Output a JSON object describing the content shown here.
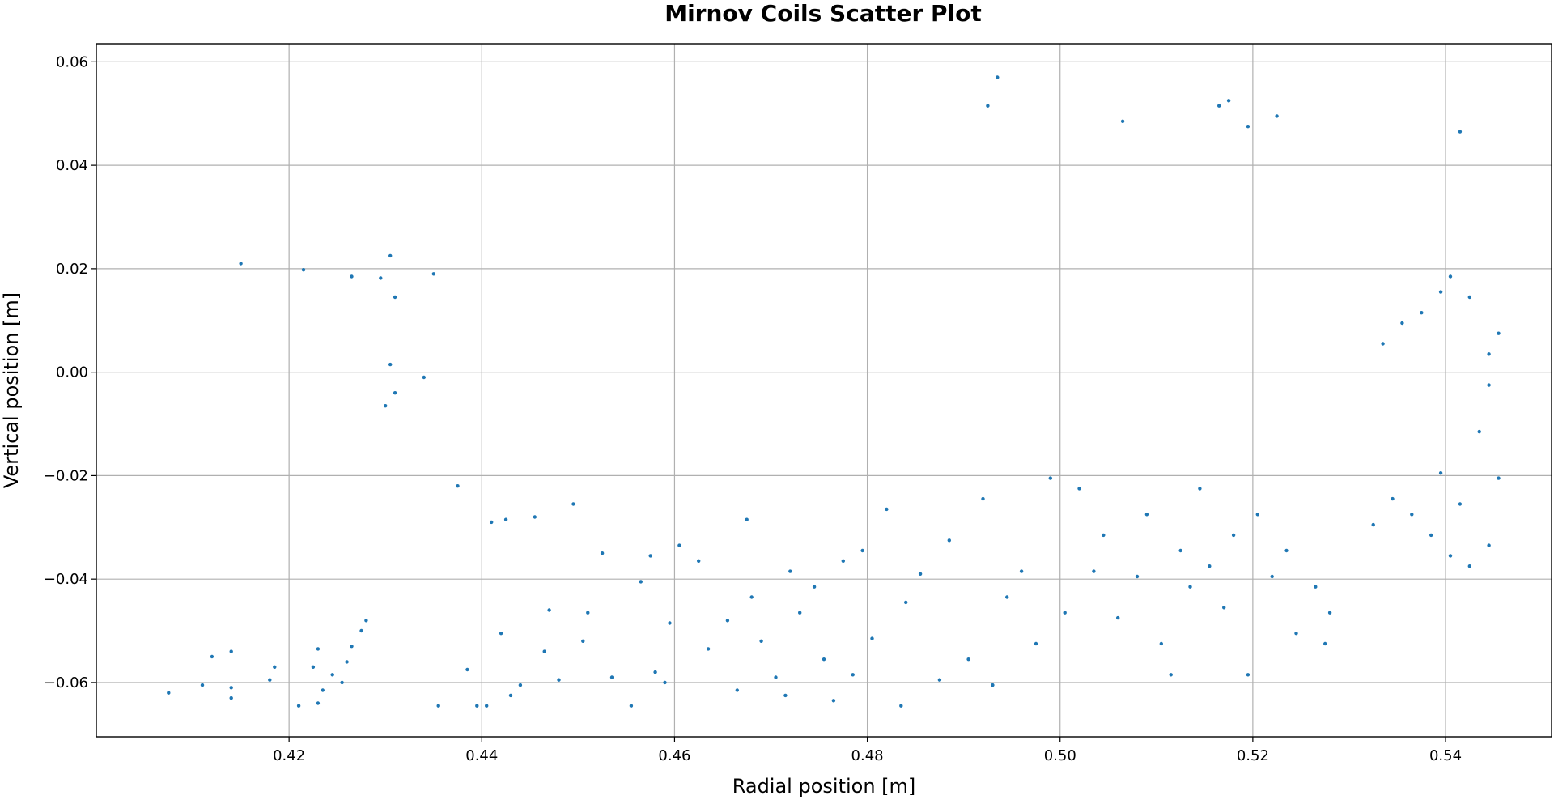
{
  "chart_data": {
    "type": "scatter",
    "title": "Mirnov Coils Scatter Plot",
    "xlabel": "Radial position [m]",
    "ylabel": "Vertical position [m]",
    "xlim": [
      0.4,
      0.551
    ],
    "ylim": [
      -0.0705,
      0.0635
    ],
    "xticks": [
      0.42,
      0.44,
      0.46,
      0.48,
      0.5,
      0.52,
      0.54
    ],
    "xtick_labels": [
      "0.42",
      "0.44",
      "0.46",
      "0.48",
      "0.50",
      "0.52",
      "0.54"
    ],
    "yticks": [
      -0.06,
      -0.04,
      -0.02,
      0.0,
      0.02,
      0.04,
      0.06
    ],
    "ytick_labels": [
      "−0.06",
      "−0.04",
      "−0.02",
      "0.00",
      "0.02",
      "0.04",
      "0.06"
    ],
    "grid": true,
    "marker_color": "#1f77b4",
    "series": [
      {
        "points": [
          [
            0.4075,
            -0.062
          ],
          [
            0.411,
            -0.0605
          ],
          [
            0.412,
            -0.055
          ],
          [
            0.414,
            -0.054
          ],
          [
            0.414,
            -0.061
          ],
          [
            0.414,
            -0.063
          ],
          [
            0.418,
            -0.0595
          ],
          [
            0.4185,
            -0.057
          ],
          [
            0.421,
            -0.0645
          ],
          [
            0.4225,
            -0.057
          ],
          [
            0.423,
            -0.0535
          ],
          [
            0.423,
            -0.064
          ],
          [
            0.4235,
            -0.0615
          ],
          [
            0.4245,
            -0.0585
          ],
          [
            0.4255,
            -0.06
          ],
          [
            0.426,
            -0.056
          ],
          [
            0.4265,
            -0.053
          ],
          [
            0.4275,
            -0.05
          ],
          [
            0.428,
            -0.048
          ],
          [
            0.415,
            0.021
          ],
          [
            0.4215,
            0.0198
          ],
          [
            0.4265,
            0.0185
          ],
          [
            0.4295,
            0.0182
          ],
          [
            0.4305,
            0.0225
          ],
          [
            0.431,
            0.0145
          ],
          [
            0.4305,
            0.0015
          ],
          [
            0.431,
            -0.004
          ],
          [
            0.43,
            -0.0065
          ],
          [
            0.434,
            -0.001
          ],
          [
            0.435,
            0.019
          ],
          [
            0.4355,
            -0.0645
          ],
          [
            0.4375,
            -0.022
          ],
          [
            0.4385,
            -0.0575
          ],
          [
            0.4395,
            -0.0645
          ],
          [
            0.4405,
            -0.0645
          ],
          [
            0.441,
            -0.029
          ],
          [
            0.442,
            -0.0505
          ],
          [
            0.4425,
            -0.0285
          ],
          [
            0.443,
            -0.0625
          ],
          [
            0.444,
            -0.0605
          ],
          [
            0.4455,
            -0.028
          ],
          [
            0.4465,
            -0.054
          ],
          [
            0.447,
            -0.046
          ],
          [
            0.448,
            -0.0595
          ],
          [
            0.4495,
            -0.0255
          ],
          [
            0.4505,
            -0.052
          ],
          [
            0.451,
            -0.0465
          ],
          [
            0.4525,
            -0.035
          ],
          [
            0.4535,
            -0.059
          ],
          [
            0.4555,
            -0.0645
          ],
          [
            0.4565,
            -0.0405
          ],
          [
            0.4575,
            -0.0355
          ],
          [
            0.458,
            -0.058
          ],
          [
            0.459,
            -0.06
          ],
          [
            0.4595,
            -0.0485
          ],
          [
            0.4605,
            -0.0335
          ],
          [
            0.4625,
            -0.0365
          ],
          [
            0.4635,
            -0.0535
          ],
          [
            0.4655,
            -0.048
          ],
          [
            0.4665,
            -0.0615
          ],
          [
            0.4675,
            -0.0285
          ],
          [
            0.468,
            -0.0435
          ],
          [
            0.469,
            -0.052
          ],
          [
            0.4705,
            -0.059
          ],
          [
            0.4715,
            -0.0625
          ],
          [
            0.472,
            -0.0385
          ],
          [
            0.473,
            -0.0465
          ],
          [
            0.4745,
            -0.0415
          ],
          [
            0.4755,
            -0.0555
          ],
          [
            0.4765,
            -0.0635
          ],
          [
            0.4775,
            -0.0365
          ],
          [
            0.4785,
            -0.0585
          ],
          [
            0.4795,
            -0.0345
          ],
          [
            0.4805,
            -0.0515
          ],
          [
            0.482,
            -0.0265
          ],
          [
            0.4835,
            -0.0645
          ],
          [
            0.484,
            -0.0445
          ],
          [
            0.4855,
            -0.039
          ],
          [
            0.4875,
            -0.0595
          ],
          [
            0.4885,
            -0.0325
          ],
          [
            0.4905,
            -0.0555
          ],
          [
            0.492,
            -0.0245
          ],
          [
            0.493,
            -0.0605
          ],
          [
            0.4945,
            -0.0435
          ],
          [
            0.496,
            -0.0385
          ],
          [
            0.4975,
            -0.0525
          ],
          [
            0.499,
            -0.0205
          ],
          [
            0.5005,
            -0.0465
          ],
          [
            0.502,
            -0.0225
          ],
          [
            0.5035,
            -0.0385
          ],
          [
            0.5045,
            -0.0315
          ],
          [
            0.506,
            -0.0475
          ],
          [
            0.508,
            -0.0395
          ],
          [
            0.509,
            -0.0275
          ],
          [
            0.5105,
            -0.0525
          ],
          [
            0.5115,
            -0.0585
          ],
          [
            0.5125,
            -0.0345
          ],
          [
            0.5135,
            -0.0415
          ],
          [
            0.5145,
            -0.0225
          ],
          [
            0.5155,
            -0.0375
          ],
          [
            0.517,
            -0.0455
          ],
          [
            0.518,
            -0.0315
          ],
          [
            0.5195,
            -0.0585
          ],
          [
            0.5205,
            -0.0275
          ],
          [
            0.522,
            -0.0395
          ],
          [
            0.5235,
            -0.0345
          ],
          [
            0.5245,
            -0.0505
          ],
          [
            0.5265,
            -0.0415
          ],
          [
            0.5275,
            -0.0525
          ],
          [
            0.528,
            -0.0465
          ],
          [
            0.4925,
            0.0515
          ],
          [
            0.4935,
            0.057
          ],
          [
            0.5065,
            0.0485
          ],
          [
            0.5165,
            0.0515
          ],
          [
            0.5175,
            0.0525
          ],
          [
            0.5415,
            0.0465
          ],
          [
            0.5225,
            0.0495
          ],
          [
            0.5195,
            0.0475
          ],
          [
            0.5385,
            -0.0315
          ],
          [
            0.5405,
            -0.0355
          ],
          [
            0.5445,
            -0.0335
          ],
          [
            0.5425,
            -0.0375
          ],
          [
            0.5365,
            -0.0275
          ],
          [
            0.5325,
            -0.0295
          ],
          [
            0.5345,
            -0.0245
          ],
          [
            0.5455,
            -0.0205
          ],
          [
            0.5415,
            -0.0255
          ],
          [
            0.5395,
            -0.0195
          ],
          [
            0.5435,
            -0.0115
          ],
          [
            0.5445,
            -0.0025
          ],
          [
            0.5445,
            0.0035
          ],
          [
            0.5455,
            0.0075
          ],
          [
            0.5395,
            0.0155
          ],
          [
            0.5375,
            0.0115
          ],
          [
            0.5405,
            0.0185
          ],
          [
            0.5425,
            0.0145
          ],
          [
            0.5355,
            0.0095
          ],
          [
            0.5335,
            0.0055
          ]
        ]
      }
    ]
  }
}
